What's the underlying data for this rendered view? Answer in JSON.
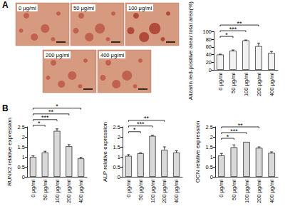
{
  "panel_labels": [
    "A",
    "B"
  ],
  "micrograph_labels": [
    "0 μg/ml",
    "50 μg/ml",
    "100 μg/ml",
    "200 μg/ml",
    "400 μg/ml"
  ],
  "chart_data": [
    {
      "type": "bar",
      "categories": [
        "0 μg/ml",
        "50 μg/ml",
        "100 μg/ml",
        "200 μg/ml",
        "400 μg/ml"
      ],
      "values": [
        40,
        50,
        77,
        62,
        44
      ],
      "errors": [
        1,
        2,
        1,
        8,
        4
      ],
      "color": "#f2f2f2",
      "y_label": "Alizarin red-positive area/ total area(%)",
      "ylim": [
        0,
        100
      ],
      "yticks": [
        0,
        20,
        40,
        60,
        80,
        100
      ],
      "grid": false,
      "annotations": [
        {
          "from": "0 μg/ml",
          "to": "50 μg/ml",
          "label": "*"
        },
        {
          "from": "0 μg/ml",
          "to": "100 μg/ml",
          "label": "***"
        },
        {
          "from": "0 μg/ml",
          "to": "200 μg/ml",
          "label": "**"
        }
      ]
    },
    {
      "type": "bar",
      "categories": [
        "0 μg/ml",
        "50 μg/ml",
        "100 μg/ml",
        "200 μg/ml",
        "400 μg/ml"
      ],
      "values": [
        1.0,
        1.22,
        2.3,
        1.53,
        0.92
      ],
      "errors": [
        0.05,
        0.06,
        0.1,
        0.08,
        0.06
      ],
      "color": "#d9d9d9",
      "y_label": "RUNX2 relative expression",
      "ylim": [
        0,
        2.5
      ],
      "yticks": [
        0,
        0.5,
        1,
        1.5,
        2,
        2.5
      ],
      "grid": false,
      "annotations": [
        {
          "from": "0 μg/ml",
          "to": "50 μg/ml",
          "label": "*"
        },
        {
          "from": "0 μg/ml",
          "to": "100 μg/ml",
          "label": "***"
        },
        {
          "from": "0 μg/ml",
          "to": "200 μg/ml",
          "label": "**"
        },
        {
          "from": "0 μg/ml",
          "to": "400 μg/ml",
          "label": "*"
        }
      ]
    },
    {
      "type": "bar",
      "categories": [
        "0 μg/ml",
        "50 μg/ml",
        "100 μg/ml",
        "200 μg/ml",
        "400 μg/ml"
      ],
      "values": [
        1.05,
        1.18,
        2.05,
        1.35,
        1.22
      ],
      "errors": [
        0.06,
        0.02,
        0.03,
        0.15,
        0.08
      ],
      "color": "#d9d9d9",
      "y_label": "ALP relative expression",
      "ylim": [
        0,
        2.5
      ],
      "yticks": [
        0,
        0.5,
        1,
        1.5,
        2,
        2.5
      ],
      "grid": false,
      "annotations": [
        {
          "from": "0 μg/ml",
          "to": "50 μg/ml",
          "label": "*"
        },
        {
          "from": "0 μg/ml",
          "to": "100 μg/ml",
          "label": "***"
        },
        {
          "from": "0 μg/ml",
          "to": "200 μg/ml",
          "label": "**"
        }
      ]
    },
    {
      "type": "bar",
      "categories": [
        "0 μg/ml",
        "50 μg/ml",
        "100 μg/ml",
        "200 μg/ml",
        "400 μg/ml"
      ],
      "values": [
        1.07,
        1.48,
        1.75,
        1.45,
        1.2
      ],
      "errors": [
        0.1,
        0.12,
        0,
        0.05,
        0.05
      ],
      "color": "#d9d9d9",
      "y_label": "OCN relative expression",
      "ylim": [
        0,
        2.5
      ],
      "yticks": [
        0,
        0.5,
        1,
        1.5,
        2,
        2.5
      ],
      "grid": false,
      "annotations": [
        {
          "from": "0 μg/ml",
          "to": "50 μg/ml",
          "label": "*"
        },
        {
          "from": "0 μg/ml",
          "to": "100 μg/ml",
          "label": "***"
        },
        {
          "from": "0 μg/ml",
          "to": "200 μg/ml",
          "label": "**"
        }
      ]
    }
  ]
}
